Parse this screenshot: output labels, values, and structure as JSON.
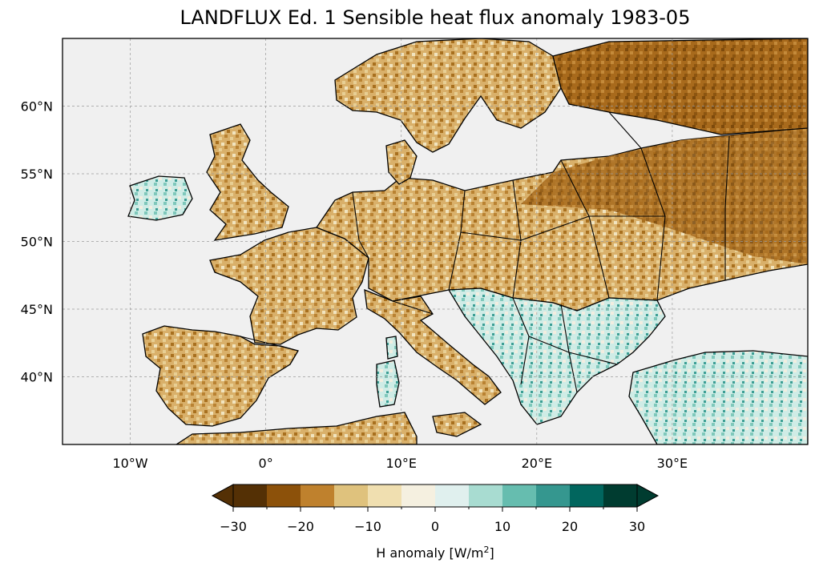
{
  "title": "LANDFLUX Ed. 1 Sensible heat flux anomaly 1983-05",
  "map": {
    "lon_range": [
      -15,
      40
    ],
    "lat_range": [
      35,
      65
    ],
    "lon_ticks": [
      {
        "value": -10,
        "label": "10°W"
      },
      {
        "value": 0,
        "label": "0°"
      },
      {
        "value": 10,
        "label": "10°E"
      },
      {
        "value": 20,
        "label": "20°E"
      },
      {
        "value": 30,
        "label": "30°E"
      }
    ],
    "lat_ticks": [
      {
        "value": 60,
        "label": "60°N"
      },
      {
        "value": 55,
        "label": "55°N"
      },
      {
        "value": 50,
        "label": "50°N"
      },
      {
        "value": 45,
        "label": "45°N"
      },
      {
        "value": 40,
        "label": "40°N"
      }
    ],
    "gridlines": true,
    "ocean_color": "#f0f0f0",
    "coastline_color": "#000000"
  },
  "colorbar": {
    "label_text": "H anomaly [W/m",
    "label_sup": "2",
    "label_close": "]",
    "bounds": [
      -30,
      -25,
      -20,
      -15,
      -10,
      -5,
      0,
      5,
      10,
      15,
      20,
      25,
      30
    ],
    "tick_values": [
      -30,
      -20,
      -10,
      0,
      10,
      20,
      30
    ],
    "tick_labels": [
      "−30",
      "−20",
      "−10",
      "0",
      "10",
      "20",
      "30"
    ],
    "colors": [
      "#543005",
      "#8c510a",
      "#bf812d",
      "#dfc27d",
      "#f0dfb0",
      "#f5f0e0",
      "#e0f0ee",
      "#a8dcd1",
      "#66bdaf",
      "#35978f",
      "#01665e",
      "#003c30"
    ],
    "extend": "both"
  }
}
